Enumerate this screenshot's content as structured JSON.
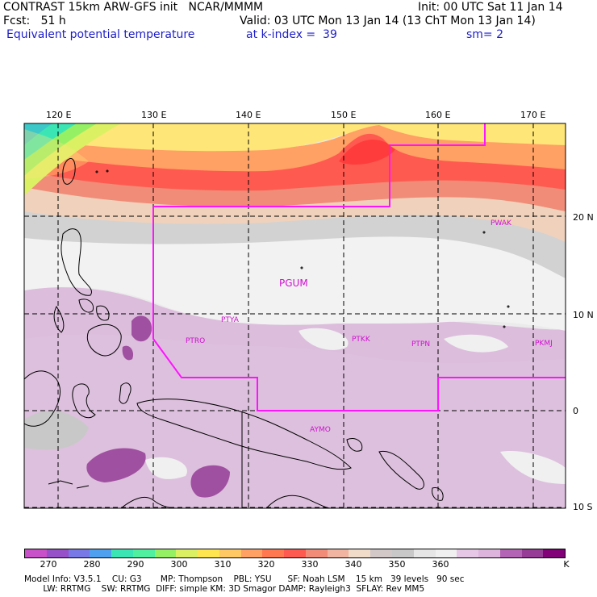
{
  "header": {
    "line1_left": "CONTRAST 15km ARW-GFS init   NCAR/MMMM",
    "line1_right": "Init: 00 UTC Sat 11 Jan 14",
    "line2_left": "Fcst:   51 h",
    "line2_right": "Valid: 03 UTC Mon 13 Jan 14 (13 ChT Mon 13 Jan 14)",
    "line3_left": "Equivalent potential temperature",
    "line3_mid": "at k-index =  39",
    "line3_right": "sm= 2"
  },
  "lon_labels": [
    "120 E",
    "130 E",
    "140 E",
    "150 E",
    "160 E",
    "170 E"
  ],
  "lat_labels": [
    "20 N",
    "10 N",
    "0",
    "10 S"
  ],
  "stations": [
    "PGUM",
    "PTYA",
    "PTRO",
    "PTKK",
    "PTPN",
    "PKMJ",
    "PWAK",
    "AYMO"
  ],
  "colorbar": {
    "labels": [
      "270",
      "280",
      "290",
      "300",
      "310",
      "320",
      "330",
      "340",
      "350",
      "360",
      "K"
    ],
    "colors": [
      "#c850c8",
      "#9650c8",
      "#7878e6",
      "#50a0f0",
      "#3ce6b4",
      "#50f0a0",
      "#96f064",
      "#dcf064",
      "#ffe650",
      "#ffc864",
      "#ffa064",
      "#ff7850",
      "#ff5a50",
      "#f08c78",
      "#f0b4a0",
      "#f0dcc8",
      "#d2c8c8",
      "#c8c8c8",
      "#e6e6e6",
      "#f0f0f0",
      "#e6c8e6",
      "#dcb4dc",
      "#b464b4",
      "#963c96",
      "#820078"
    ]
  },
  "footer": {
    "line1": "Model Info: V3.5.1    CU: G3       MP: Thompson    PBL: YSU      SF: Noah LSM    15 km   39 levels   90 sec",
    "line2": "       LW: RRTMG    SW: RRTMG  DIFF: simple KM: 3D Smagor DAMP: Rayleigh3  SFLAY: Rev MM5"
  }
}
